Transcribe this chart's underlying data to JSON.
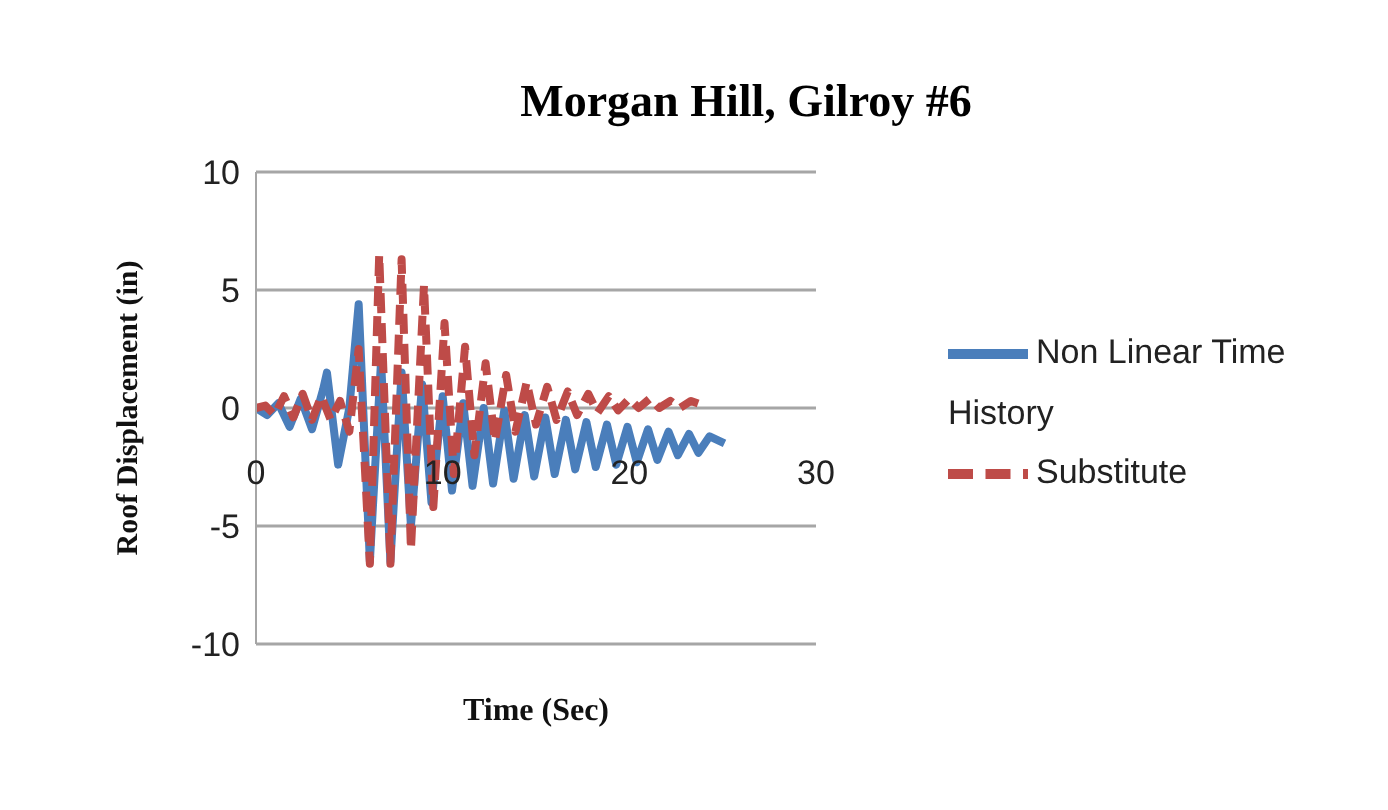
{
  "chart_data": {
    "type": "line",
    "title": "Morgan Hill, Gilroy #6",
    "xlabel": "Time (Sec)",
    "ylabel": "Roof Displacement (in)",
    "xlim": [
      0,
      30
    ],
    "xticks": [
      0,
      10,
      20,
      30
    ],
    "ylim": [
      -10,
      10
    ],
    "yticks": [
      -10,
      -5,
      0,
      5,
      10
    ],
    "grid": "y",
    "legend": "right",
    "marker": "none",
    "series": [
      {
        "name": "Non Linear Time History",
        "color": "#4a7ebb",
        "line_style": "solid",
        "x": [
          0,
          0.6,
          1.2,
          1.8,
          2.4,
          3.0,
          3.6,
          3.8,
          4.4,
          5.0,
          5.5,
          6.1,
          6.7,
          7.2,
          7.8,
          8.3,
          8.9,
          9.4,
          10.0,
          10.5,
          11.1,
          11.6,
          12.2,
          12.7,
          13.3,
          13.8,
          14.4,
          14.9,
          15.5,
          16.0,
          16.6,
          17.1,
          17.7,
          18.2,
          18.8,
          19.3,
          19.9,
          20.4,
          21.0,
          21.5,
          22.1,
          22.6,
          23.2,
          23.7,
          24.3,
          25.1
        ],
        "values": [
          0,
          -0.3,
          0.2,
          -0.8,
          0.4,
          -0.9,
          0.8,
          1.5,
          -2.4,
          0,
          4.4,
          -6.5,
          2.0,
          -6.5,
          1.5,
          -5.0,
          1.0,
          -4.0,
          0.5,
          -3.5,
          0.2,
          -3.3,
          0,
          -3.2,
          -0.1,
          -3.0,
          -0.3,
          -2.9,
          -0.4,
          -2.8,
          -0.5,
          -2.6,
          -0.6,
          -2.5,
          -0.7,
          -2.4,
          -0.8,
          -2.3,
          -0.9,
          -2.2,
          -1.0,
          -2.0,
          -1.1,
          -1.9,
          -1.2,
          -1.5
        ]
      },
      {
        "name": "Substitute",
        "color": "#be4b48",
        "line_style": "dashed",
        "x": [
          0,
          0.5,
          1,
          1.5,
          2,
          2.5,
          3,
          3.5,
          4,
          4.5,
          5,
          5.5,
          6.1,
          6.6,
          7.2,
          7.8,
          8.3,
          9.0,
          9.5,
          10.1,
          10.6,
          11.2,
          11.7,
          12.3,
          12.8,
          13.4,
          13.9,
          14.5,
          15.0,
          15.6,
          16.1,
          16.7,
          17.2,
          17.8,
          18.3,
          18.9,
          19.4,
          20.0,
          20.5,
          21.1,
          21.6,
          22.2,
          22.7,
          23.3,
          24.0
        ],
        "values": [
          0,
          0.1,
          -0.3,
          0.5,
          -0.4,
          0.6,
          -0.5,
          0.5,
          -0.5,
          0.3,
          -1.0,
          2.5,
          -6.6,
          6.5,
          -6.6,
          6.3,
          -6.0,
          5.2,
          -4.2,
          3.6,
          -2.8,
          2.6,
          -2.0,
          1.9,
          -1.4,
          1.4,
          -1.0,
          1.1,
          -0.7,
          0.9,
          -0.5,
          0.7,
          -0.3,
          0.6,
          -0.2,
          0.5,
          -0.1,
          0.4,
          0,
          0.4,
          0,
          0.3,
          0,
          0.3,
          0.1
        ]
      }
    ]
  }
}
